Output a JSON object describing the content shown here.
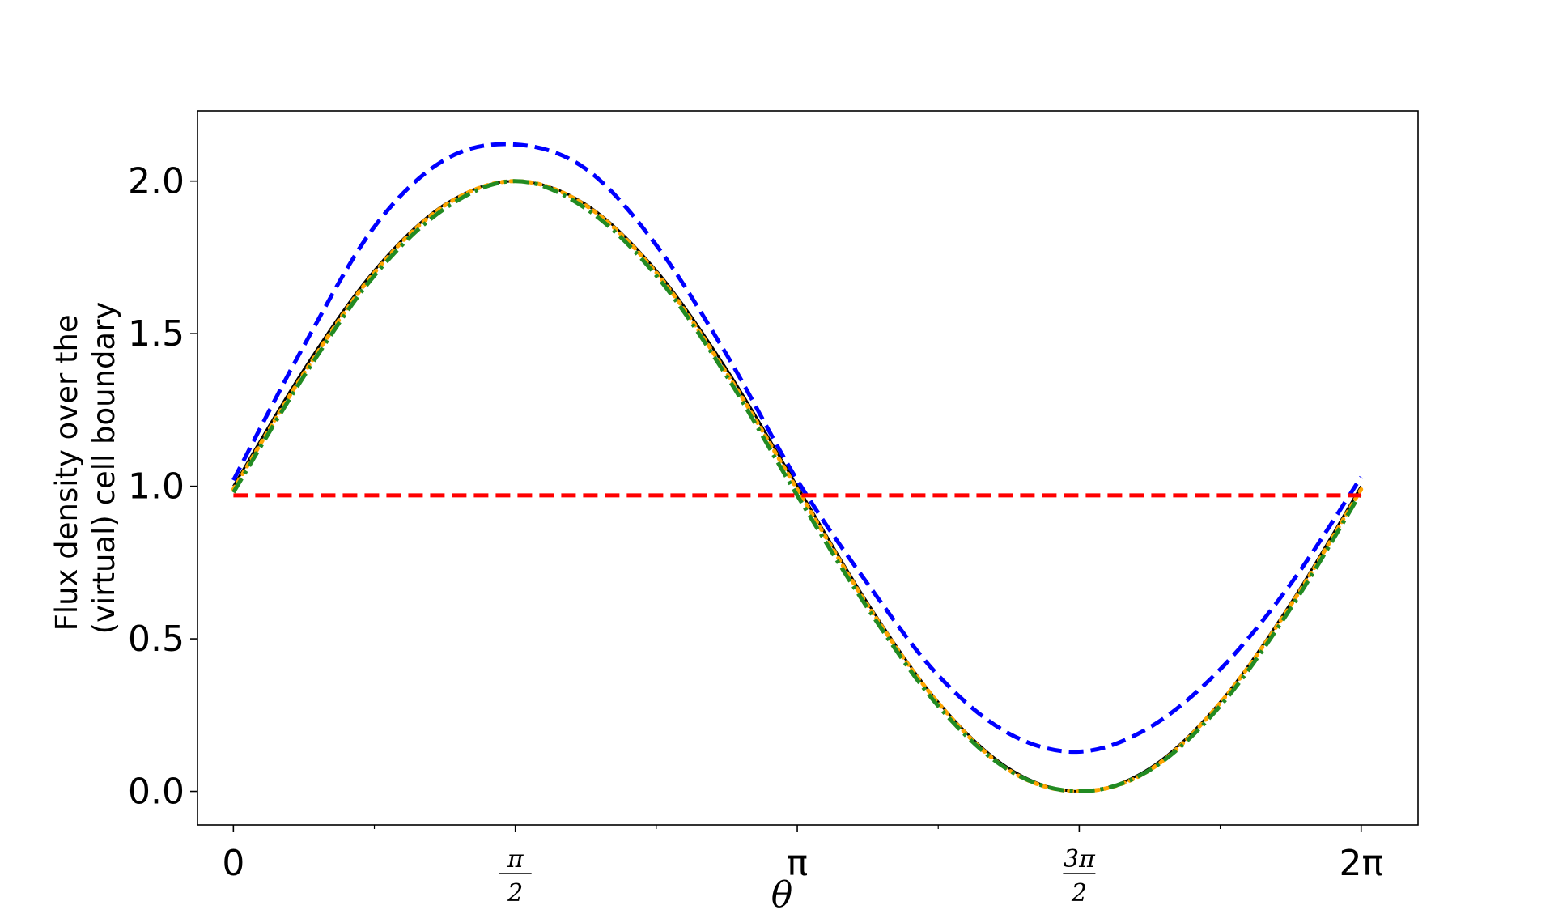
{
  "chart_data": {
    "type": "line",
    "title": "",
    "xlabel": "θ",
    "ylabel_lines": [
      "Flux density over the",
      "(virtual) cell boundary"
    ],
    "xlim": [
      -0.2,
      6.6
    ],
    "ylim": [
      -0.11,
      2.23
    ],
    "grid": false,
    "x_ticks": [
      {
        "value": 0,
        "label": "0"
      },
      {
        "value": 1.5708,
        "num": "π",
        "den": "2"
      },
      {
        "value": 3.1416,
        "label": "π"
      },
      {
        "value": 4.7124,
        "num": "3π",
        "den": "2"
      },
      {
        "value": 6.2832,
        "label": "2π"
      }
    ],
    "x_minor_ticks": [
      0.7854,
      2.3562,
      3.927,
      5.4978
    ],
    "y_ticks": [
      {
        "value": 0.0,
        "label": "0.0"
      },
      {
        "value": 0.5,
        "label": "0.5"
      },
      {
        "value": 1.0,
        "label": "1.0"
      },
      {
        "value": 1.5,
        "label": "1.5"
      },
      {
        "value": 2.0,
        "label": "2.0"
      }
    ],
    "series": [
      {
        "color": "#0000ff",
        "style": "dashed",
        "x": [
          0,
          0.3927,
          0.7854,
          1.1781,
          1.5708,
          1.9635,
          2.3562,
          2.7489,
          3.1416,
          3.5343,
          3.927,
          4.3197,
          4.7124,
          5.1051,
          5.4978,
          5.8905,
          6.2832
        ],
        "y": [
          1.02,
          1.46,
          1.85,
          2.07,
          2.12,
          2.04,
          1.79,
          1.43,
          1.02,
          0.68,
          0.38,
          0.19,
          0.13,
          0.21,
          0.4,
          0.68,
          1.03
        ]
      },
      {
        "color": "#000000",
        "style": "solid",
        "x": [
          0,
          0.3927,
          0.7854,
          1.1781,
          1.5708,
          1.9635,
          2.3562,
          2.7489,
          3.1416,
          3.5343,
          3.927,
          4.3197,
          4.7124,
          5.1051,
          5.4978,
          5.8905,
          6.2832
        ],
        "y": [
          1.0,
          1.383,
          1.707,
          1.924,
          2.0,
          1.924,
          1.707,
          1.383,
          1.0,
          0.617,
          0.293,
          0.076,
          0.0,
          0.076,
          0.293,
          0.617,
          1.0
        ]
      },
      {
        "color": "#ffa500",
        "style": "dotted",
        "x": [
          0,
          0.3927,
          0.7854,
          1.1781,
          1.5708,
          1.9635,
          2.3562,
          2.7489,
          3.1416,
          3.5343,
          3.927,
          4.3197,
          4.7124,
          5.1051,
          5.4978,
          5.8905,
          6.2832
        ],
        "y": [
          0.99,
          1.37,
          1.7,
          1.92,
          2.0,
          1.92,
          1.7,
          1.37,
          0.99,
          0.61,
          0.29,
          0.07,
          0.0,
          0.07,
          0.29,
          0.61,
          0.99
        ]
      },
      {
        "color": "#228b22",
        "style": "dashdot",
        "x": [
          0,
          0.3927,
          0.7854,
          1.1781,
          1.5708,
          1.9635,
          2.3562,
          2.7489,
          3.1416,
          3.5343,
          3.927,
          4.3197,
          4.7124,
          5.1051,
          5.4978,
          5.8905,
          6.2832
        ],
        "y": [
          0.98,
          1.36,
          1.69,
          1.91,
          2.0,
          1.91,
          1.69,
          1.36,
          0.97,
          0.6,
          0.28,
          0.07,
          0.0,
          0.07,
          0.28,
          0.6,
          0.98
        ]
      },
      {
        "color": "#ff0000",
        "style": "dashed",
        "x": [
          0,
          0.3927,
          0.7854,
          1.1781,
          1.5708,
          1.9635,
          2.3562,
          2.7489,
          3.1416,
          3.5343,
          3.927,
          4.3197,
          4.7124,
          5.1051,
          5.4978,
          5.8905,
          6.2832
        ],
        "y": [
          0.97,
          0.97,
          0.97,
          0.97,
          0.97,
          0.97,
          0.97,
          0.97,
          0.97,
          0.97,
          0.97,
          0.97,
          0.97,
          0.97,
          0.97,
          0.97,
          0.97
        ]
      }
    ]
  }
}
